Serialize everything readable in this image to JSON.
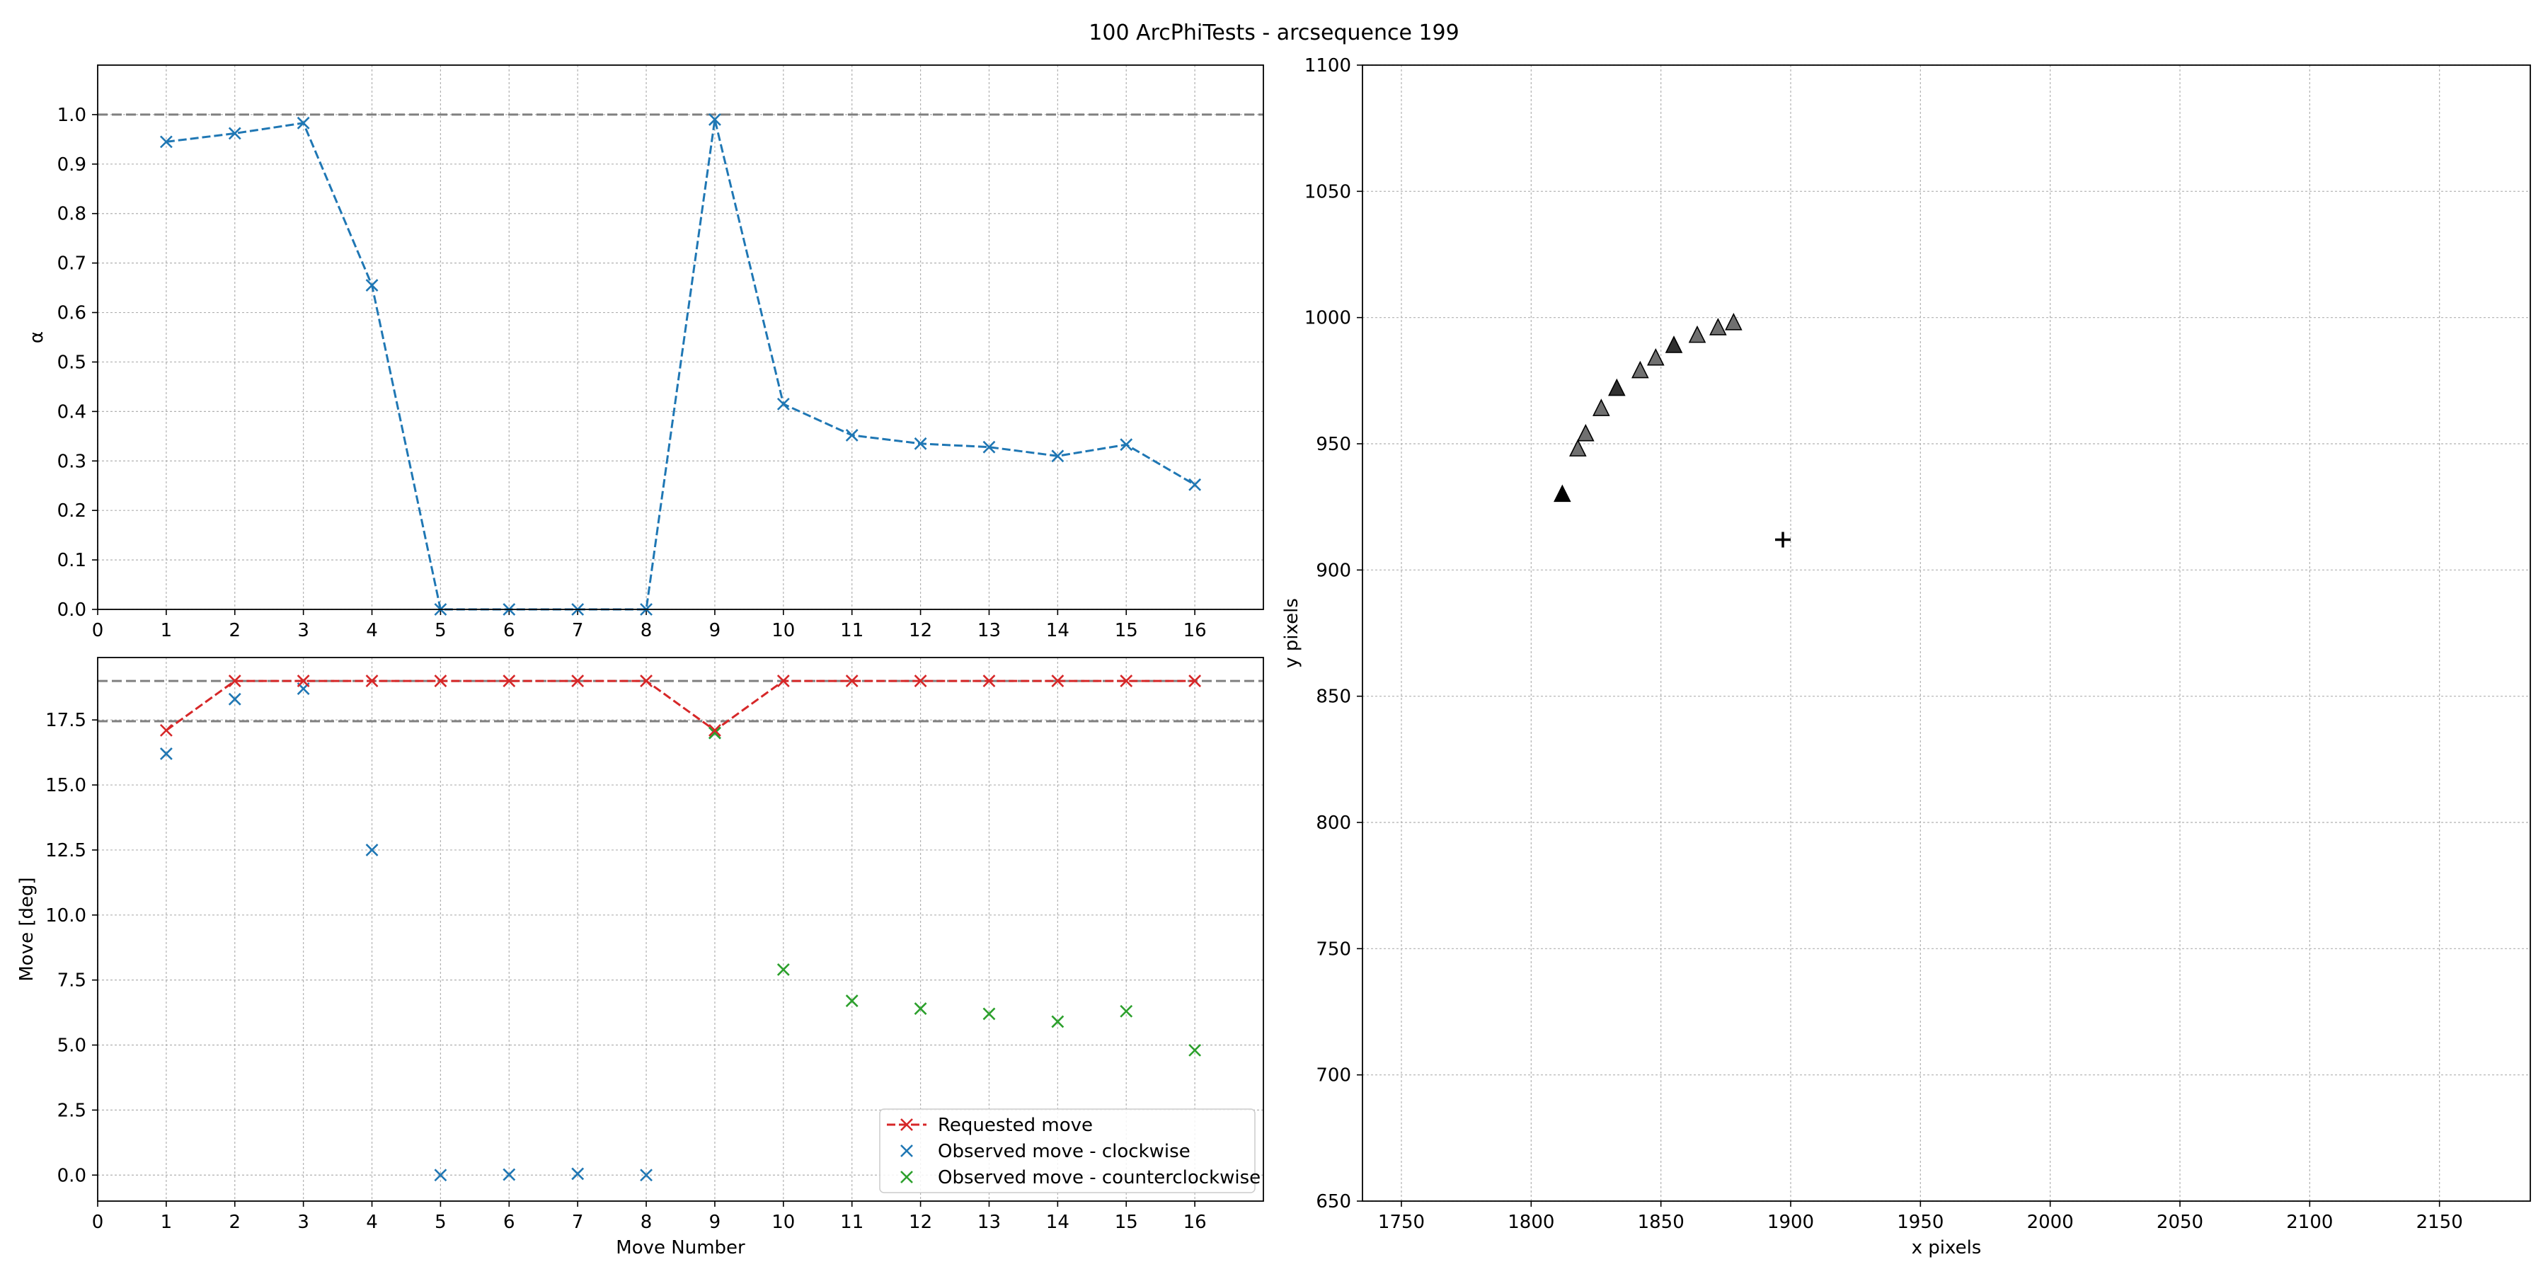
{
  "figure": {
    "title": "100 ArcPhiTests - arcsequence 199"
  },
  "chart_data": [
    {
      "id": "alpha",
      "type": "line",
      "xlabel": "",
      "ylabel": "α",
      "xlim": [
        0,
        17
      ],
      "ylim": [
        0,
        1.1
      ],
      "xticks": [
        0,
        1,
        2,
        3,
        4,
        5,
        6,
        7,
        8,
        9,
        10,
        11,
        12,
        13,
        14,
        15,
        16
      ],
      "yticks": [
        0.0,
        0.1,
        0.2,
        0.3,
        0.4,
        0.5,
        0.6,
        0.7,
        0.8,
        0.9,
        1.0
      ],
      "ytick_labels": [
        "0.0",
        "0.1",
        "0.2",
        "0.3",
        "0.4",
        "0.5",
        "0.6",
        "0.7",
        "0.8",
        "0.9",
        "1.0"
      ],
      "grid": true,
      "hlines": [
        1.0
      ],
      "x": [
        1,
        2,
        3,
        4,
        5,
        6,
        7,
        8,
        9,
        10,
        11,
        12,
        13,
        14,
        15,
        16
      ],
      "series": [
        {
          "values": [
            0.945,
            0.962,
            0.983,
            0.655,
            0.0,
            0.0,
            0.0,
            0.0,
            0.99,
            0.415,
            0.352,
            0.335,
            0.328,
            0.31,
            0.333,
            0.252
          ],
          "color": "#1f77b4",
          "marker": "x",
          "linestyle": "dashed"
        }
      ]
    },
    {
      "id": "moves",
      "type": "line",
      "xlabel": "Move Number",
      "ylabel": "Move [deg]",
      "xlim": [
        0,
        17
      ],
      "ylim": [
        -1,
        19.9
      ],
      "xticks": [
        0,
        1,
        2,
        3,
        4,
        5,
        6,
        7,
        8,
        9,
        10,
        11,
        12,
        13,
        14,
        15,
        16
      ],
      "yticks": [
        0,
        2.5,
        5,
        7.5,
        10,
        12.5,
        15,
        17.5
      ],
      "ytick_labels": [
        "0.0",
        "2.5",
        "5.0",
        "7.5",
        "10.0",
        "12.5",
        "15.0",
        "17.5"
      ],
      "grid": true,
      "hlines": [
        19.0,
        17.45
      ],
      "legend_position": "lower right",
      "series": [
        {
          "name": "Requested move",
          "color": "#d62728",
          "marker": "x",
          "linestyle": "dashed",
          "x": [
            1,
            2,
            3,
            4,
            5,
            6,
            7,
            8,
            9,
            10,
            11,
            12,
            13,
            14,
            15,
            16
          ],
          "values": [
            17.1,
            19.0,
            19.0,
            19.0,
            19.0,
            19.0,
            19.0,
            19.0,
            17.1,
            19.0,
            19.0,
            19.0,
            19.0,
            19.0,
            19.0,
            19.0
          ]
        },
        {
          "name": "Observed move - clockwise",
          "color": "#1f77b4",
          "marker": "x",
          "linestyle": "none",
          "x": [
            1,
            2,
            3,
            4,
            5,
            6,
            7,
            8,
            9
          ],
          "values": [
            16.2,
            18.3,
            18.7,
            12.5,
            0.0,
            0.02,
            0.05,
            0.0,
            17.0
          ]
        },
        {
          "name": "Observed move - counterclockwise",
          "color": "#2ca02c",
          "marker": "x",
          "linestyle": "none",
          "x": [
            9,
            10,
            11,
            12,
            13,
            14,
            15,
            16
          ],
          "values": [
            17.0,
            7.9,
            6.7,
            6.4,
            6.2,
            5.9,
            6.3,
            4.8
          ]
        }
      ]
    },
    {
      "id": "positions",
      "type": "scatter",
      "xlabel": "x pixels",
      "ylabel": "y pixels",
      "xlim": [
        1735,
        2185
      ],
      "ylim": [
        650,
        1100
      ],
      "xticks": [
        1750,
        1800,
        1850,
        1900,
        1950,
        2000,
        2050,
        2100,
        2150
      ],
      "yticks": [
        650,
        700,
        750,
        800,
        850,
        900,
        950,
        1000,
        1050,
        1100
      ],
      "grid": true,
      "series": [
        {
          "marker": "triangle",
          "points": [
            {
              "x": 1812,
              "y": 930,
              "shade": "#000000"
            },
            {
              "x": 1818,
              "y": 948,
              "shade": "#707070"
            },
            {
              "x": 1821,
              "y": 954,
              "shade": "#707070"
            },
            {
              "x": 1827,
              "y": 964,
              "shade": "#707070"
            },
            {
              "x": 1833,
              "y": 972,
              "shade": "#303030"
            },
            {
              "x": 1842,
              "y": 979,
              "shade": "#707070"
            },
            {
              "x": 1848,
              "y": 984,
              "shade": "#707070"
            },
            {
              "x": 1855,
              "y": 989,
              "shade": "#303030"
            },
            {
              "x": 1864,
              "y": 993,
              "shade": "#707070"
            },
            {
              "x": 1872,
              "y": 996,
              "shade": "#707070"
            },
            {
              "x": 1878,
              "y": 998,
              "shade": "#707070"
            }
          ]
        },
        {
          "marker": "plus",
          "points": [
            {
              "x": 1897,
              "y": 912,
              "shade": "#000000"
            }
          ]
        }
      ]
    }
  ]
}
